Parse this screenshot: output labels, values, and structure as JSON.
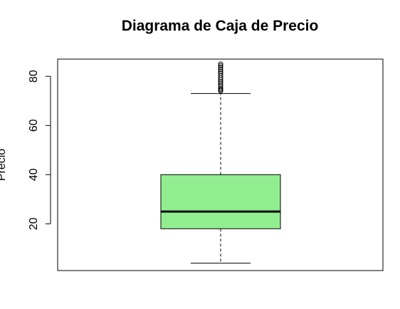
{
  "chart_data": {
    "type": "boxplot",
    "title": "Diagrama de Caja de Precio",
    "ylabel": "Precio",
    "xlabel": "",
    "ylim": [
      1,
      87
    ],
    "yticks": [
      20,
      40,
      60,
      80
    ],
    "box_color": "#90EE90",
    "box": {
      "lower_whisker": 4,
      "q1": 18,
      "median": 25,
      "q3": 40,
      "upper_whisker": 73
    },
    "outliers": [
      74,
      74.5,
      75,
      75.7,
      76.5,
      77.3,
      78,
      78.8,
      79.6,
      80.5,
      81.3,
      82,
      82.8,
      83.6,
      84.3,
      85
    ]
  }
}
